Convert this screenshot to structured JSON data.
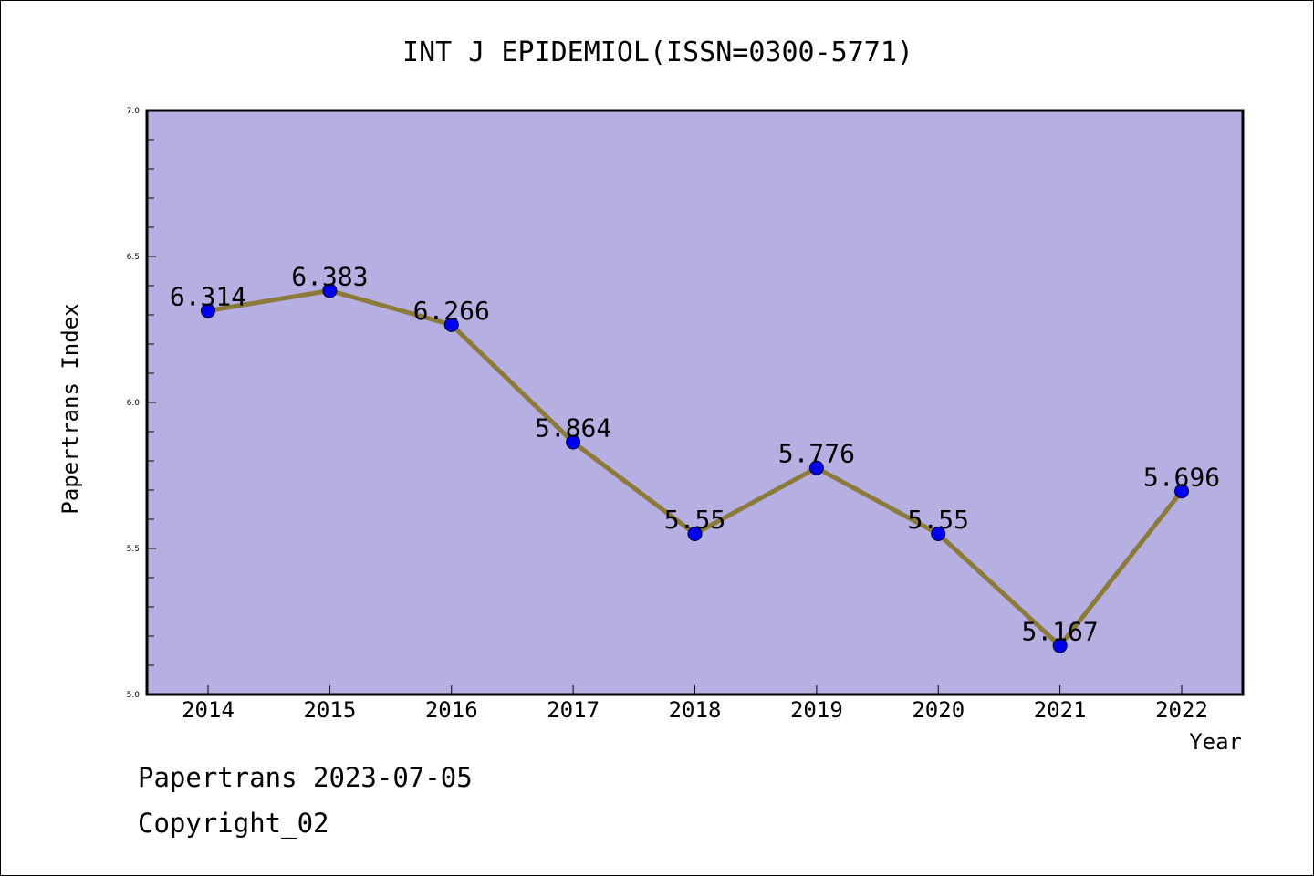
{
  "chart_data": {
    "type": "line",
    "title": "INT J EPIDEMIOL(ISSN=0300-5771)",
    "xlabel": "Year",
    "ylabel": "Papertrans Index",
    "x": [
      "2014",
      "2015",
      "2016",
      "2017",
      "2018",
      "2019",
      "2020",
      "2021",
      "2022"
    ],
    "values": [
      6.314,
      6.383,
      6.266,
      5.864,
      5.55,
      5.776,
      5.55,
      5.167,
      5.696
    ],
    "data_labels": [
      "6.314",
      "6.383",
      "6.266",
      "5.864",
      "5.55",
      "5.776",
      "5.55",
      "5.167",
      "5.696"
    ],
    "ylim": [
      5.0,
      7.0
    ],
    "yticks": [
      "5.0",
      "5.5",
      "6.0",
      "6.5",
      "7.0"
    ],
    "grid": false,
    "legend": "none",
    "colors": {
      "plot_background": "#b5afe2",
      "line": "#8b7a3a",
      "marker": "#0000ee",
      "axis": "#000000"
    }
  },
  "footer": {
    "line1": "Papertrans 2023-07-05",
    "line2": "Copyright_02"
  }
}
